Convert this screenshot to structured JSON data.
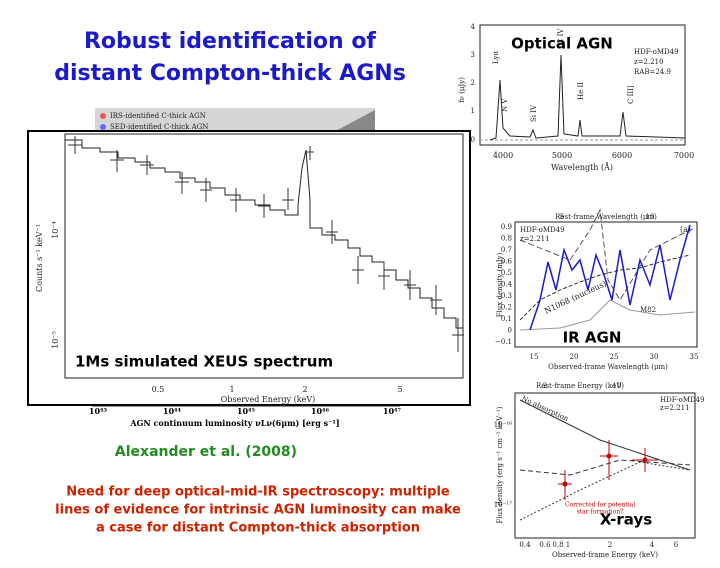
{
  "title": [
    "Robust identification of",
    "distant Compton-thick AGNs"
  ],
  "main_plot": {
    "legend": [
      "IRS-identified C-thick AGN",
      "SED-identified C-thick AGN"
    ],
    "label": "1Ms simulated XEUS spectrum",
    "ylabel": "Counts s⁻¹ keV⁻¹",
    "yticks": [
      "10⁻⁴",
      "10⁻⁵"
    ],
    "xticks": [
      "0.5",
      "1",
      "2",
      "5"
    ],
    "xlabel": "Observed Energy (keV)",
    "lum_ticks": [
      "10⁴³",
      "10⁴⁴",
      "10⁴⁵",
      "10⁴⁶",
      "10⁴⁷"
    ],
    "lum_label": "AGN continuum luminosity νLν(6μm) [erg s⁻¹]"
  },
  "optical_plot": {
    "label": "Optical AGN",
    "yticks": [
      "0",
      "1",
      "2",
      "3",
      "4"
    ],
    "xticks": [
      "4000",
      "5000",
      "6000",
      "7000"
    ],
    "xlabel": "Wavelength (Å)",
    "ylabel": "fν (μJy)",
    "annotations": [
      "HDF-oMD49",
      "z=2.210",
      "RAB=24.9"
    ],
    "lines": [
      "Lyα",
      "N V",
      "Si IV",
      "C IV",
      "He II",
      "C III]"
    ]
  },
  "ir_plot": {
    "label": "IR AGN",
    "top_label": "Rest-frame Wavelength (μm)",
    "top_ticks": [
      "5",
      "10"
    ],
    "panel": "(a)",
    "annotations": [
      "HDF-oMD49",
      "z=2.211"
    ],
    "yticks": [
      "0.9",
      "0.8",
      "0.7",
      "0.6",
      "0.5",
      "0.4",
      "0.3",
      "0.2",
      "0.1",
      "0",
      "−0.1"
    ],
    "ylabel": "Flux density (mJy)",
    "xticks": [
      "15",
      "20",
      "25",
      "30",
      "35"
    ],
    "xlabel": "Observed-frame Wavelength (μm)",
    "templates": [
      "N1068 (nucleus)",
      "M82"
    ]
  },
  "xray_plot": {
    "label": "X-rays",
    "top_label": "Rest-frame Energy (keV)",
    "top_ticks": [
      "2",
      "10"
    ],
    "curve_label": "No absorption",
    "annotations": [
      "HDF-oMD49",
      "z=2.211"
    ],
    "yticks": [
      "10⁻¹⁶",
      "10⁻¹⁷"
    ],
    "ylabel": "Flux density (erg s⁻¹ cm⁻² keV⁻¹)",
    "xticks": [
      "0.4",
      "0.6",
      "0.8",
      "1",
      "2",
      "4",
      "6"
    ],
    "xlabel": "Observed-frame Energy (keV)",
    "note": [
      "Corrected for potential",
      "star formation?"
    ]
  },
  "citation": "Alexander et al. (2008)",
  "note": [
    "Need for deep optical-mid-IR spectroscopy: multiple",
    "lines of evidence for intrinsic AGN luminosity can make",
    "a case for distant Compton-thick absorption"
  ]
}
